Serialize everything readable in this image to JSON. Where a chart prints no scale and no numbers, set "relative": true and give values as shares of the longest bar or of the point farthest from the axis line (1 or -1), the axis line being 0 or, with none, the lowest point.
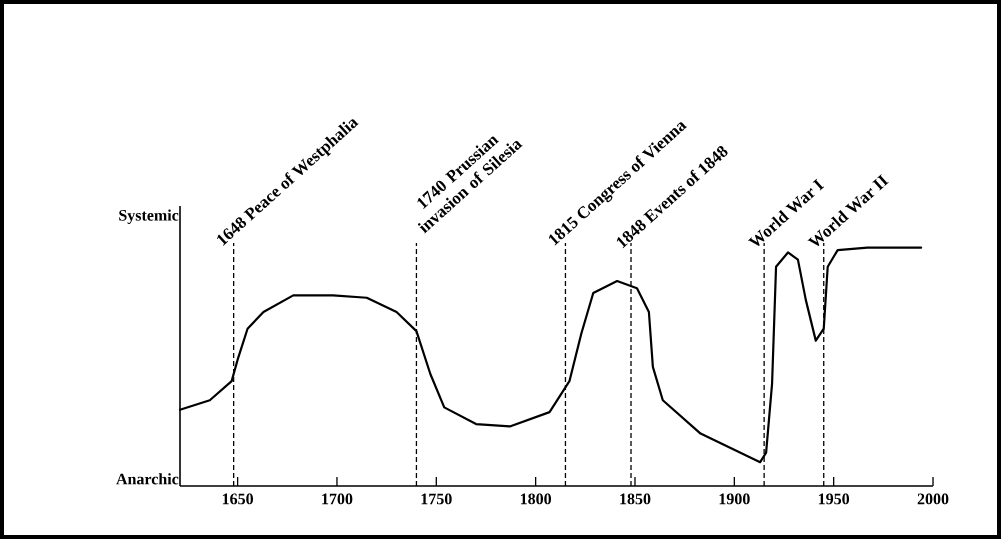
{
  "chart_data": {
    "type": "line",
    "x": [
      1621,
      1636,
      1647,
      1650,
      1655,
      1663,
      1678,
      1698,
      1715,
      1730,
      1740,
      1747,
      1754,
      1770,
      1787,
      1807,
      1817,
      1823,
      1829,
      1841,
      1851,
      1857,
      1859,
      1864,
      1883,
      1913,
      1916,
      1919,
      1921,
      1927,
      1932,
      1936,
      1941,
      1945,
      1947,
      1952,
      1967,
      1994
    ],
    "series": [
      {
        "color": "#000000",
        "values": [
          0.32,
          0.36,
          0.44,
          0.53,
          0.66,
          0.73,
          0.8,
          0.8,
          0.79,
          0.73,
          0.65,
          0.47,
          0.33,
          0.26,
          0.25,
          0.31,
          0.44,
          0.64,
          0.81,
          0.86,
          0.83,
          0.73,
          0.5,
          0.36,
          0.22,
          0.1,
          0.14,
          0.43,
          0.92,
          0.98,
          0.95,
          0.78,
          0.61,
          0.66,
          0.92,
          0.99,
          1.0,
          1.0
        ]
      }
    ],
    "relative": true,
    "annotations": [
      "Systemic",
      "Anarchic"
    ],
    "xlim": [
      1621,
      2000
    ],
    "xticks": [
      1650,
      1700,
      1750,
      1800,
      1850,
      1900,
      1950,
      2000
    ],
    "ref_lines": [
      {
        "axis": "x",
        "value": 1648,
        "label": "1648  Peace of Westphalia",
        "line_style": "dashed"
      },
      {
        "axis": "x",
        "value": 1740,
        "label": "1740  Prussian invasion of Silesia",
        "line_style": "dashed"
      },
      {
        "axis": "x",
        "value": 1815,
        "label": "1815  Congress of Vienna",
        "line_style": "dashed"
      },
      {
        "axis": "x",
        "value": 1848,
        "label": "1848  Events of 1848",
        "line_style": "dashed"
      },
      {
        "axis": "x",
        "value": 1915,
        "label": "World War I",
        "line_style": "dashed"
      },
      {
        "axis": "x",
        "value": 1945,
        "label": "World War II",
        "line_style": "dashed"
      }
    ]
  }
}
